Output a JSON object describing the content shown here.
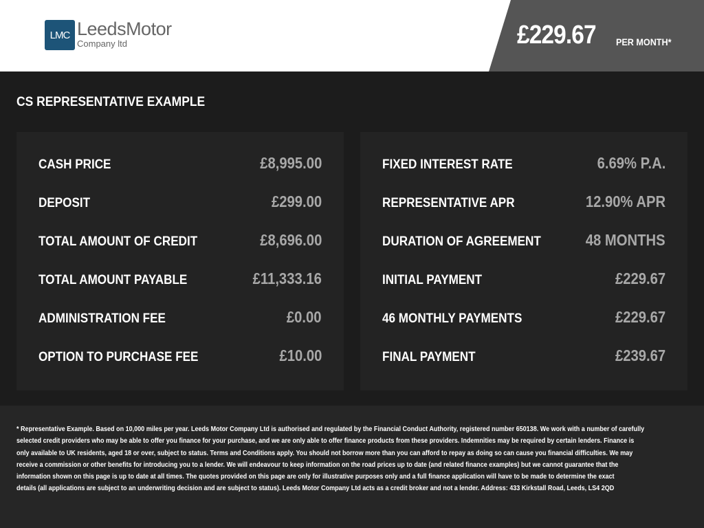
{
  "logo": {
    "mark": "LMC",
    "name": "LeedsMotor",
    "sub": "Company ltd",
    "color": "#1d5478"
  },
  "header": {
    "price": "£229.67",
    "per_month": "PER MONTH*"
  },
  "title": "CS REPRESENTATIVE EXAMPLE",
  "left": [
    {
      "label": "CASH PRICE",
      "value": "£8,995.00"
    },
    {
      "label": "DEPOSIT",
      "value": "£299.00"
    },
    {
      "label": "TOTAL AMOUNT OF CREDIT",
      "value": "£8,696.00"
    },
    {
      "label": "TOTAL AMOUNT PAYABLE",
      "value": "£11,333.16"
    },
    {
      "label": "ADMINISTRATION FEE",
      "value": "£0.00"
    },
    {
      "label": "OPTION TO PURCHASE FEE",
      "value": "£10.00"
    }
  ],
  "right": [
    {
      "label": "FIXED INTEREST RATE",
      "value": "6.69% P.A."
    },
    {
      "label": "REPRESENTATIVE APR",
      "value": "12.90% APR"
    },
    {
      "label": "DURATION OF AGREEMENT",
      "value": "48 MONTHS"
    },
    {
      "label": "INITIAL PAYMENT",
      "value": "£229.67"
    },
    {
      "label": "46 MONTHLY PAYMENTS",
      "value": "£229.67"
    },
    {
      "label": "FINAL PAYMENT",
      "value": "£239.67"
    }
  ],
  "footer": [
    "* Representative Example. Based on 10,000 miles per year. Leeds Motor Company Ltd is authorised and regulated by the Financial Conduct Authority, registered number 650138. We work with a number of carefully",
    "selected credit providers who may be able to offer you finance for your purchase, and we are only able to offer finance products from these providers. Indemnities may be required by certain lenders. Finance is",
    "only available to UK residents, aged 18 or over, subject to status. Terms and Conditions apply. You should not borrow more than you can afford to repay as doing so can cause you financial difficulties. We may",
    "receive a commission or other benefits for introducing you to a lender. We will endeavour to keep information on the road prices up to date (and related finance examples) but we cannot guarantee that the",
    "information shown on this page is up to date at all times. The quotes provided on this page are only for illustrative purposes only and a full finance application will have to be made to determine the exact",
    "details (all applications are subject to an underwriting decision and are subject to status). Leeds Motor Company Ltd acts as a credit broker and not a lender. Address: 433 Kirkstall Road, Leeds, LS4 2QD"
  ]
}
